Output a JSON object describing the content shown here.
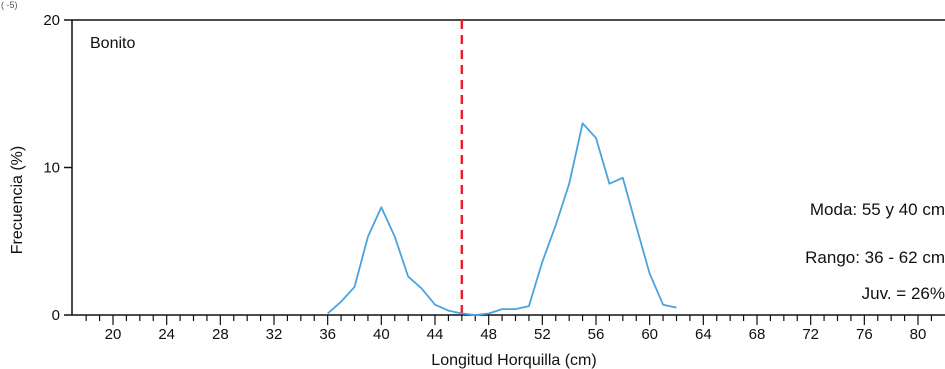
{
  "corner_text": "( -5)",
  "chart_data": {
    "type": "line",
    "panel_label": "Bonito",
    "xlabel": "Longitud Horquilla (cm)",
    "ylabel": "Frecuencia (%)",
    "xlim": [
      18,
      82
    ],
    "ylim": [
      0,
      20
    ],
    "xticks": [
      20,
      24,
      28,
      32,
      36,
      40,
      44,
      48,
      52,
      56,
      60,
      64,
      68,
      72,
      76,
      80
    ],
    "yticks": [
      0,
      10,
      20
    ],
    "grid": false,
    "reference_line": {
      "x": 46,
      "style": "dashed",
      "color": "#e8212a"
    },
    "series": [
      {
        "color": "#4aa3df",
        "points": [
          [
            36,
            0.1
          ],
          [
            37,
            0.9
          ],
          [
            38,
            1.9
          ],
          [
            39,
            5.3
          ],
          [
            40,
            7.3
          ],
          [
            41,
            5.3
          ],
          [
            42,
            2.6
          ],
          [
            43,
            1.8
          ],
          [
            44,
            0.7
          ],
          [
            45,
            0.3
          ],
          [
            46,
            0.1
          ],
          [
            47,
            0.0
          ],
          [
            48,
            0.1
          ],
          [
            49,
            0.4
          ],
          [
            50,
            0.4
          ],
          [
            51,
            0.6
          ],
          [
            52,
            3.6
          ],
          [
            53,
            6.1
          ],
          [
            54,
            8.9
          ],
          [
            55,
            13.0
          ],
          [
            56,
            12.0
          ],
          [
            57,
            8.9
          ],
          [
            58,
            9.3
          ],
          [
            59,
            6.0
          ],
          [
            60,
            2.8
          ],
          [
            61,
            0.7
          ],
          [
            62,
            0.5
          ]
        ]
      }
    ],
    "annotations": [
      "Moda: 55 y 40 cm",
      "Rango: 36 - 62 cm",
      "Juv. = 26%"
    ]
  }
}
